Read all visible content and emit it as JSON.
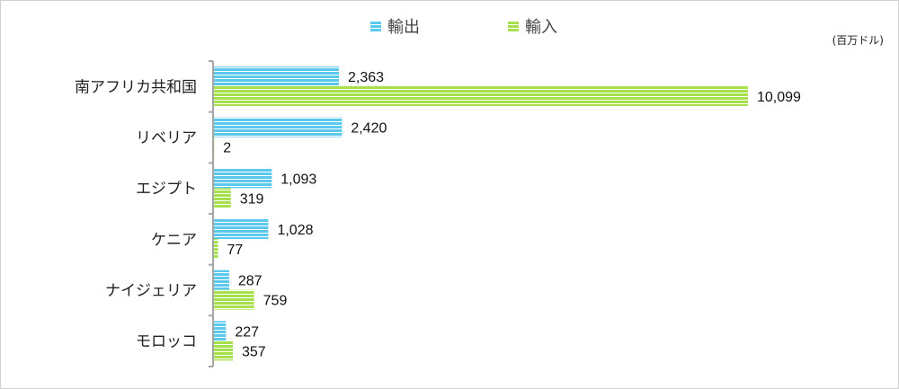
{
  "chart_data": {
    "type": "bar",
    "orientation": "horizontal",
    "unit": "(百万ドル)",
    "categories": [
      "南アフリカ共和国",
      "リベリア",
      "エジプト",
      "ケニア",
      "ナイジェリア",
      "モロッコ"
    ],
    "series": [
      {
        "name": "輸出",
        "color": "#5bc8ee",
        "values": [
          2363,
          2420,
          1093,
          1028,
          287,
          227
        ],
        "labels": [
          "2,363",
          "2,420",
          "1,093",
          "1,028",
          "287",
          "227"
        ]
      },
      {
        "name": "輸入",
        "color": "#a6e04a",
        "values": [
          10099,
          2,
          319,
          77,
          759,
          357
        ],
        "labels": [
          "10,099",
          "2",
          "319",
          "77",
          "759",
          "357"
        ]
      }
    ],
    "xlim": [
      0,
      10099
    ],
    "legend_position": "top",
    "grid": false
  }
}
